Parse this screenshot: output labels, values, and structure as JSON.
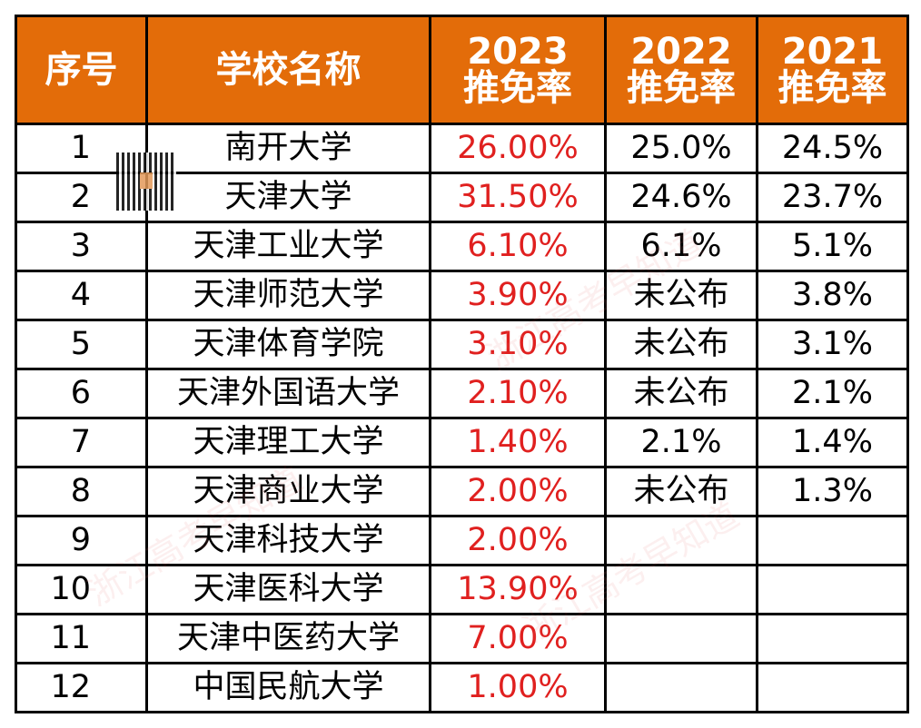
{
  "header": {
    "index": "序号",
    "name": "学校名称",
    "y2023": [
      "2023",
      "推免率"
    ],
    "y2022": [
      "2022",
      "推免率"
    ],
    "y2021": [
      "2021",
      "推免率"
    ]
  },
  "accent_color": "#E36C09",
  "highlight_color": "#e0201f",
  "watermark": "浙江高考早知道",
  "rows": [
    {
      "index": "1",
      "name": "南开大学",
      "r2023": "26.00%",
      "r2022": "25.0%",
      "r2021": "24.5%"
    },
    {
      "index": "2",
      "name": "天津大学",
      "r2023": "31.50%",
      "r2022": "24.6%",
      "r2021": "23.7%"
    },
    {
      "index": "3",
      "name": "天津工业大学",
      "r2023": "6.10%",
      "r2022": "6.1%",
      "r2021": "5.1%"
    },
    {
      "index": "4",
      "name": "天津师范大学",
      "r2023": "3.90%",
      "r2022": "未公布",
      "r2021": "3.8%"
    },
    {
      "index": "5",
      "name": "天津体育学院",
      "r2023": "3.10%",
      "r2022": "未公布",
      "r2021": "3.1%"
    },
    {
      "index": "6",
      "name": "天津外国语大学",
      "r2023": "2.10%",
      "r2022": "未公布",
      "r2021": "2.1%"
    },
    {
      "index": "7",
      "name": "天津理工大学",
      "r2023": "1.40%",
      "r2022": "2.1%",
      "r2021": "1.4%"
    },
    {
      "index": "8",
      "name": "天津商业大学",
      "r2023": "2.00%",
      "r2022": "未公布",
      "r2021": "1.3%"
    },
    {
      "index": "9",
      "name": "天津科技大学",
      "r2023": "2.00%",
      "r2022": "",
      "r2021": ""
    },
    {
      "index": "10",
      "name": "天津医科大学",
      "r2023": "13.90%",
      "r2022": "",
      "r2021": ""
    },
    {
      "index": "11",
      "name": "天津中医药大学",
      "r2023": "7.00%",
      "r2022": "",
      "r2021": ""
    },
    {
      "index": "12",
      "name": "中国民航大学",
      "r2023": "1.00%",
      "r2022": "",
      "r2021": ""
    }
  ]
}
